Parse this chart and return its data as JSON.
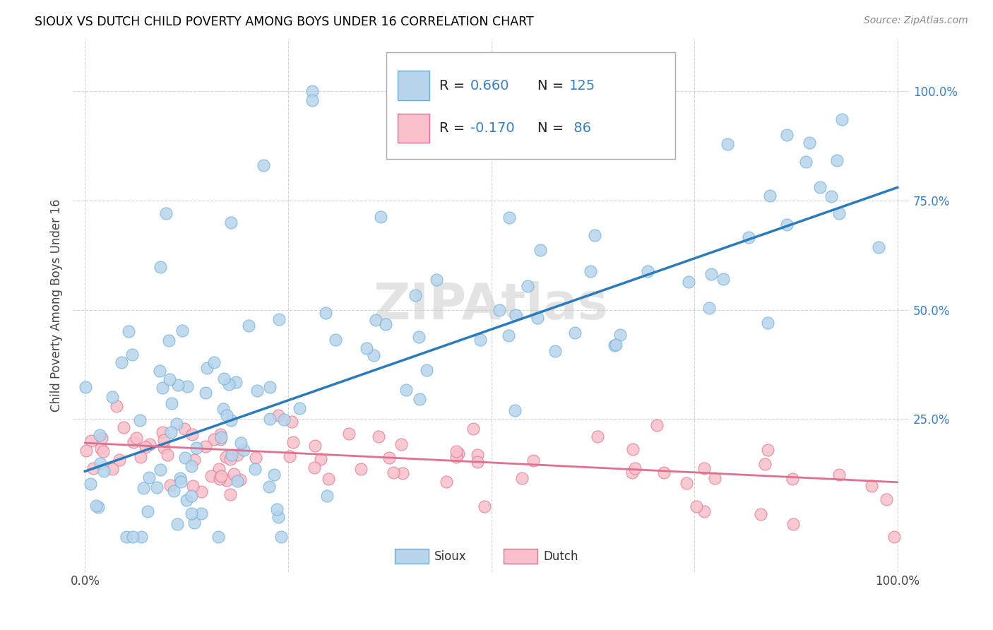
{
  "title": "SIOUX VS DUTCH CHILD POVERTY AMONG BOYS UNDER 16 CORRELATION CHART",
  "source": "Source: ZipAtlas.com",
  "ylabel": "Child Poverty Among Boys Under 16",
  "sioux_R": 0.66,
  "sioux_N": 125,
  "dutch_R": -0.17,
  "dutch_N": 86,
  "sioux_fill": "#b8d4ec",
  "sioux_edge": "#6aaed6",
  "dutch_fill": "#f9c0cb",
  "dutch_edge": "#e07090",
  "sioux_line_color": "#2b7bba",
  "dutch_line_color": "#e07090",
  "watermark": "ZIPAtlas",
  "legend_R_color": "#3a7fbf",
  "sioux_line_intercept": 0.13,
  "sioux_line_slope": 0.65,
  "dutch_line_intercept": 0.195,
  "dutch_line_slope": -0.09
}
